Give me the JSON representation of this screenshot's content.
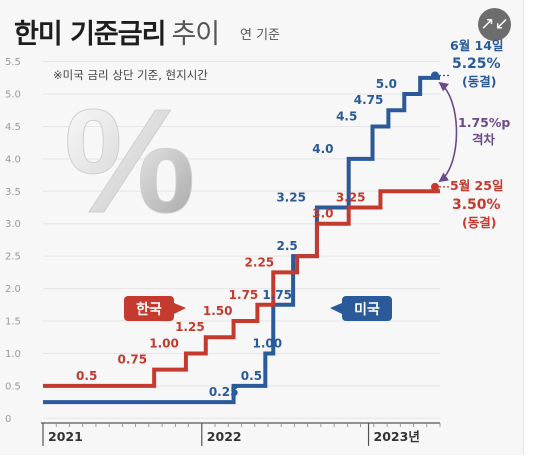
{
  "title": {
    "main": "한미 기준금리",
    "sub": "추이"
  },
  "unit": "연 기준",
  "note": "※미국 금리 상단 기준, 현지시간",
  "percent_symbol": "%",
  "expand_icon": "↗↙",
  "tags": {
    "korea": "한국",
    "us": "미국"
  },
  "annotations": {
    "us_date": "6월 14일",
    "us_rate": "5.25%",
    "us_status": "(동결)",
    "kr_date": "5월 25일",
    "kr_rate": "3.50%",
    "kr_status": "(동결)",
    "gap_value": "1.75%p",
    "gap_label": "격차"
  },
  "colors": {
    "us": "#2a5a9a",
    "korea": "#c43a2f",
    "gap": "#6b4b8c"
  },
  "chart_data": {
    "type": "line",
    "step": true,
    "ylim": [
      0,
      5.5
    ],
    "yticks": [
      "0",
      "0.5",
      "1.0",
      "1.5",
      "2.0",
      "2.5",
      "3.0",
      "3.5",
      "4.0",
      "4.5",
      "5.0",
      "5.5"
    ],
    "year_labels": [
      "2021",
      "2022",
      "2023년"
    ],
    "series": [
      {
        "name": "미국",
        "points": [
          {
            "t": 0.0,
            "v": 0.25
          },
          {
            "t": 0.42,
            "v": 0.25
          },
          {
            "t": 0.48,
            "v": 0.5
          },
          {
            "t": 0.56,
            "v": 1.0
          },
          {
            "t": 0.58,
            "v": 1.75
          },
          {
            "t": 0.63,
            "v": 2.5
          },
          {
            "t": 0.69,
            "v": 3.25
          },
          {
            "t": 0.77,
            "v": 4.0
          },
          {
            "t": 0.83,
            "v": 4.5
          },
          {
            "t": 0.87,
            "v": 4.75
          },
          {
            "t": 0.91,
            "v": 5.0
          },
          {
            "t": 0.95,
            "v": 5.25
          },
          {
            "t": 1.0,
            "v": 5.25
          }
        ],
        "labels": [
          {
            "text": "0.25",
            "t": 0.455,
            "v": 0.25
          },
          {
            "text": "0.5",
            "t": 0.525,
            "v": 0.5
          },
          {
            "text": "1.00",
            "t": 0.565,
            "v": 1.0
          },
          {
            "text": "1.75",
            "t": 0.59,
            "v": 1.75
          },
          {
            "text": "2.5",
            "t": 0.615,
            "v": 2.5
          },
          {
            "text": "3.25",
            "t": 0.625,
            "v": 3.25
          },
          {
            "text": "4.0",
            "t": 0.705,
            "v": 4.0
          },
          {
            "text": "4.5",
            "t": 0.765,
            "v": 4.5
          },
          {
            "text": "4.75",
            "t": 0.82,
            "v": 4.75
          },
          {
            "text": "5.0",
            "t": 0.865,
            "v": 5.0
          }
        ]
      },
      {
        "name": "한국",
        "points": [
          {
            "t": 0.0,
            "v": 0.5
          },
          {
            "t": 0.22,
            "v": 0.5
          },
          {
            "t": 0.28,
            "v": 0.75
          },
          {
            "t": 0.36,
            "v": 1.0
          },
          {
            "t": 0.41,
            "v": 1.25
          },
          {
            "t": 0.48,
            "v": 1.5
          },
          {
            "t": 0.54,
            "v": 1.75
          },
          {
            "t": 0.58,
            "v": 2.25
          },
          {
            "t": 0.64,
            "v": 2.5
          },
          {
            "t": 0.69,
            "v": 3.0
          },
          {
            "t": 0.77,
            "v": 3.25
          },
          {
            "t": 0.85,
            "v": 3.5
          },
          {
            "t": 1.0,
            "v": 3.5
          }
        ],
        "labels": [
          {
            "text": "0.5",
            "t": 0.11,
            "v": 0.5
          },
          {
            "text": "0.75",
            "t": 0.225,
            "v": 0.75
          },
          {
            "text": "1.00",
            "t": 0.305,
            "v": 1.0
          },
          {
            "text": "1.25",
            "t": 0.37,
            "v": 1.25
          },
          {
            "text": "1.50",
            "t": 0.44,
            "v": 1.5
          },
          {
            "text": "1.75",
            "t": 0.505,
            "v": 1.75
          },
          {
            "text": "2.25",
            "t": 0.545,
            "v": 2.25
          },
          {
            "text": "3.0",
            "t": 0.705,
            "v": 3.0
          },
          {
            "text": "3.25",
            "t": 0.775,
            "v": 3.25
          }
        ]
      }
    ]
  }
}
